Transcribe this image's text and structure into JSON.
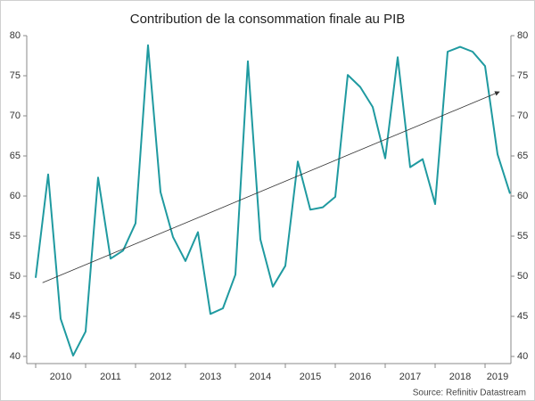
{
  "chart_data": {
    "type": "line",
    "title": "Contribution de la consommation finale au PIB",
    "source": "Source: Refinitiv Datastream",
    "categories": [
      null,
      null,
      "2010",
      null,
      null,
      null,
      "2011",
      null,
      null,
      null,
      "2012",
      null,
      null,
      null,
      "2013",
      null,
      null,
      null,
      "2014",
      null,
      null,
      null,
      "2015",
      null,
      null,
      null,
      "2016",
      null,
      null,
      null,
      "2017",
      null,
      null,
      null,
      "2018",
      null,
      null,
      "2019",
      null
    ],
    "series": [
      {
        "name": "Contribution",
        "color": "#1f9aa0",
        "values": [
          49.8,
          62.7,
          44.7,
          40.1,
          43.1,
          62.3,
          52.2,
          53.2,
          56.6,
          78.8,
          60.5,
          54.9,
          51.9,
          55.5,
          45.3,
          46.0,
          50.2,
          76.8,
          54.6,
          48.7,
          51.3,
          64.3,
          58.3,
          58.6,
          59.9,
          75.1,
          73.6,
          71.1,
          64.7,
          77.3,
          63.6,
          64.6,
          59.0,
          78.0,
          78.6,
          78.0,
          76.2,
          65.2,
          60.3
        ]
      }
    ],
    "trend_values": [
      49.2,
      73.0
    ],
    "ylim": [
      40,
      80
    ],
    "yticks": [
      40,
      45,
      50,
      55,
      60,
      65,
      70,
      75,
      80
    ],
    "y2lim": [
      40,
      80
    ],
    "y2ticks": [
      40,
      45,
      50,
      55,
      60,
      65,
      70,
      75,
      80
    ],
    "grid": false
  }
}
